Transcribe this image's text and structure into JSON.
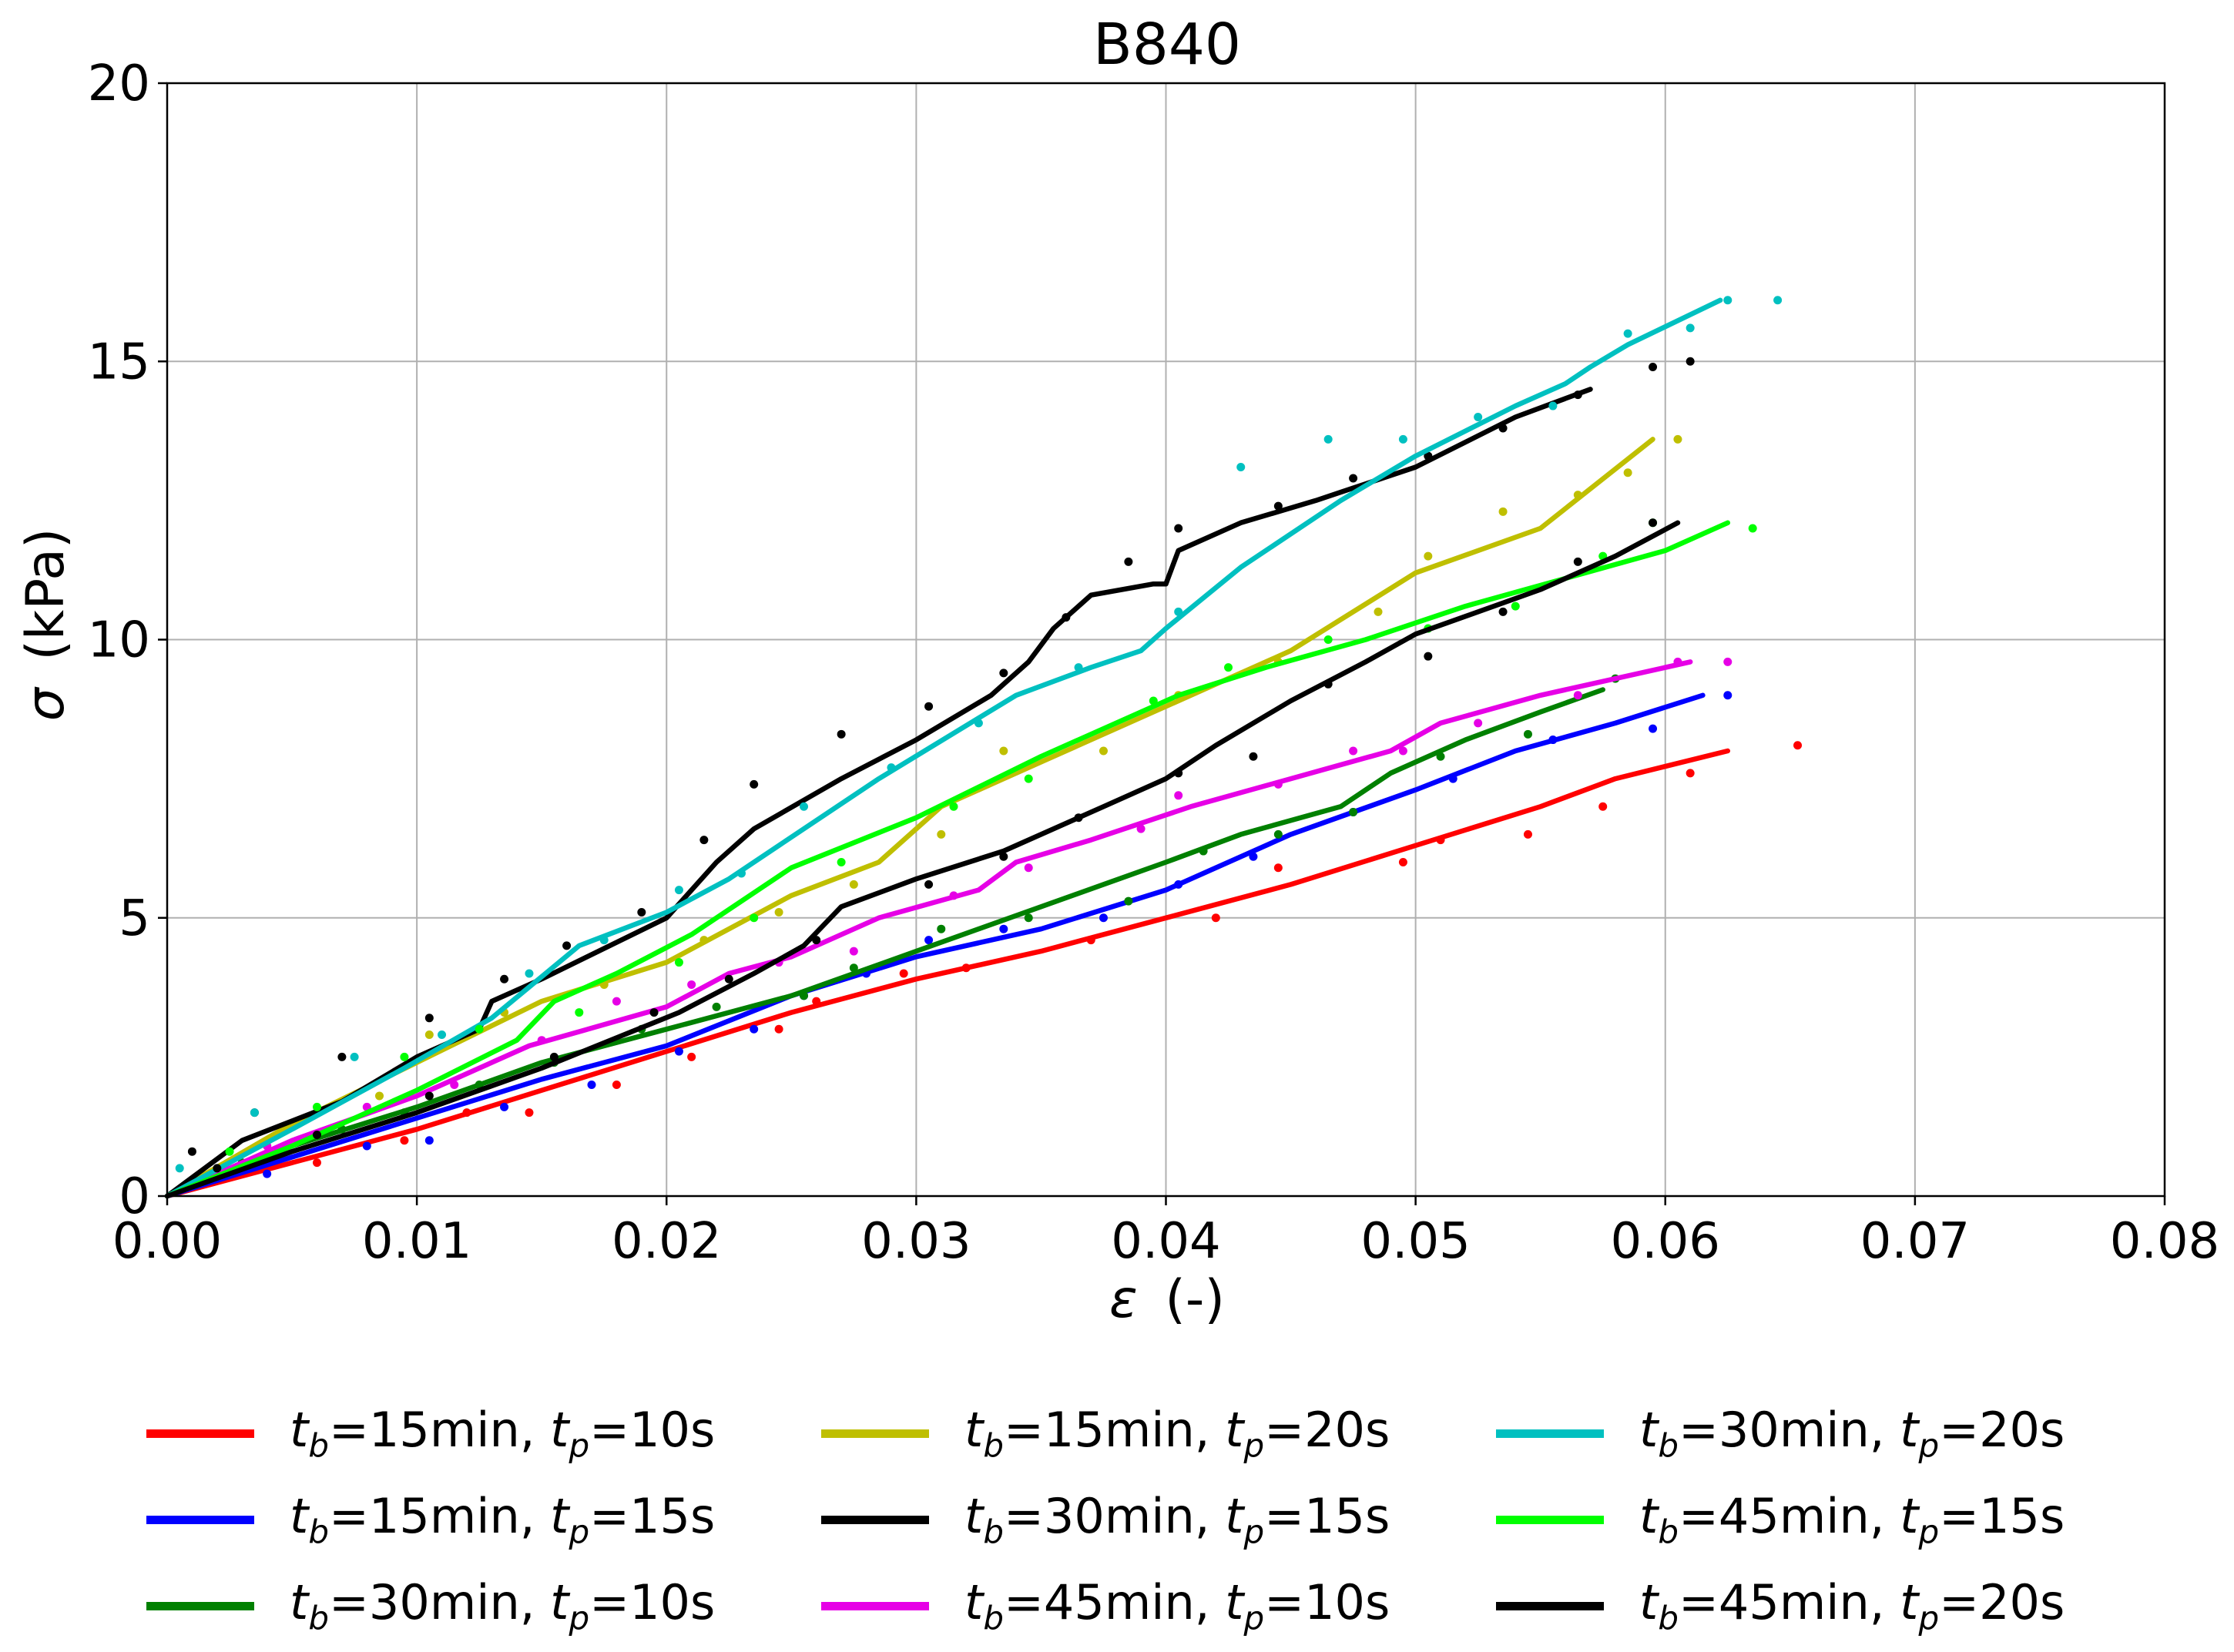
{
  "chart_data": {
    "type": "line",
    "title": "B840",
    "xlabel_symbol": "ε",
    "xlabel_unit": "(-)",
    "ylabel_symbol": "σ",
    "ylabel_unit": "(kPa)",
    "xlim": [
      0,
      0.08
    ],
    "ylim": [
      0,
      20
    ],
    "xticks": [
      0,
      0.01,
      0.02,
      0.03,
      0.04,
      0.05,
      0.06,
      0.07,
      0.08
    ],
    "xtick_labels": [
      "0.00",
      "0.01",
      "0.02",
      "0.03",
      "0.04",
      "0.05",
      "0.06",
      "0.07",
      "0.08"
    ],
    "yticks": [
      0,
      5,
      10,
      15,
      20
    ],
    "ytick_labels": [
      "0",
      "5",
      "10",
      "15",
      "20"
    ],
    "grid": true,
    "legend_position": "below",
    "series": [
      {
        "id": "s1",
        "tb": "15min",
        "tp": "10s",
        "color": "#ff0000",
        "x": [
          0,
          0.005,
          0.01,
          0.015,
          0.02,
          0.025,
          0.03,
          0.035,
          0.04,
          0.045,
          0.05,
          0.055,
          0.058,
          0.0625
        ],
        "y": [
          0,
          0.6,
          1.2,
          1.9,
          2.6,
          3.3,
          3.9,
          4.4,
          5.0,
          5.6,
          6.3,
          7.0,
          7.5,
          8.0
        ],
        "points_x": [
          0.003,
          0.006,
          0.0095,
          0.012,
          0.0145,
          0.018,
          0.021,
          0.0245,
          0.026,
          0.0295,
          0.032,
          0.037,
          0.042,
          0.0445,
          0.0495,
          0.051,
          0.0545,
          0.0575,
          0.061,
          0.0653
        ],
        "points_y": [
          0.4,
          0.6,
          1.0,
          1.5,
          1.5,
          2.0,
          2.5,
          3.0,
          3.5,
          4.0,
          4.1,
          4.6,
          5.0,
          5.9,
          6.0,
          6.4,
          6.5,
          7.0,
          7.6,
          8.1
        ]
      },
      {
        "id": "s2",
        "tb": "15min",
        "tp": "15s",
        "color": "#0000ff",
        "x": [
          0,
          0.005,
          0.01,
          0.015,
          0.02,
          0.025,
          0.03,
          0.035,
          0.04,
          0.045,
          0.05,
          0.054,
          0.058,
          0.0615
        ],
        "y": [
          0,
          0.7,
          1.4,
          2.1,
          2.7,
          3.6,
          4.3,
          4.8,
          5.5,
          6.5,
          7.3,
          8.0,
          8.5,
          9.0
        ],
        "points_x": [
          0.004,
          0.008,
          0.0105,
          0.0135,
          0.017,
          0.0205,
          0.0235,
          0.0255,
          0.028,
          0.0305,
          0.0335,
          0.0375,
          0.0405,
          0.0435,
          0.0475,
          0.0515,
          0.0555,
          0.0595,
          0.0625
        ],
        "points_y": [
          0.4,
          0.9,
          1.0,
          1.6,
          2.0,
          2.6,
          3.0,
          3.6,
          4.0,
          4.6,
          4.8,
          5.0,
          5.6,
          6.1,
          6.9,
          7.5,
          8.2,
          8.4,
          9.0
        ]
      },
      {
        "id": "s3",
        "tb": "30min",
        "tp": "10s",
        "color": "#008000",
        "x": [
          0,
          0.005,
          0.01,
          0.015,
          0.02,
          0.025,
          0.03,
          0.035,
          0.04,
          0.043,
          0.047,
          0.049,
          0.052,
          0.055,
          0.0575
        ],
        "y": [
          0,
          0.9,
          1.6,
          2.4,
          3.0,
          3.6,
          4.4,
          5.2,
          6.0,
          6.5,
          7.0,
          7.6,
          8.2,
          8.7,
          9.1
        ],
        "points_x": [
          0.003,
          0.007,
          0.0095,
          0.0125,
          0.0155,
          0.019,
          0.022,
          0.0255,
          0.0275,
          0.031,
          0.0345,
          0.0385,
          0.0415,
          0.0445,
          0.0475,
          0.051,
          0.0545,
          0.058
        ],
        "points_y": [
          0.6,
          1.2,
          1.5,
          2.0,
          2.4,
          3.0,
          3.4,
          3.6,
          4.1,
          4.8,
          5.0,
          5.3,
          6.2,
          6.5,
          6.9,
          7.9,
          8.3,
          9.3
        ]
      },
      {
        "id": "s4",
        "tb": "15min",
        "tp": "20s",
        "color": "#bfbf00",
        "x": [
          0,
          0.005,
          0.01,
          0.015,
          0.02,
          0.025,
          0.0285,
          0.031,
          0.035,
          0.04,
          0.045,
          0.05,
          0.055,
          0.0595
        ],
        "y": [
          0,
          1.3,
          2.4,
          3.5,
          4.2,
          5.4,
          6.0,
          7.0,
          7.8,
          8.8,
          9.8,
          11.2,
          12.0,
          13.6
        ],
        "points_x": [
          0.004,
          0.0085,
          0.0105,
          0.0135,
          0.0175,
          0.0215,
          0.0245,
          0.0275,
          0.031,
          0.0335,
          0.0375,
          0.0405,
          0.0445,
          0.0485,
          0.0505,
          0.0535,
          0.0565,
          0.0585,
          0.0605
        ],
        "points_y": [
          0.9,
          1.8,
          2.9,
          3.3,
          3.8,
          4.6,
          5.1,
          5.6,
          6.5,
          8.0,
          8.0,
          9.0,
          9.6,
          10.5,
          11.5,
          12.3,
          12.6,
          13.0,
          13.6
        ]
      },
      {
        "id": "s5",
        "tb": "30min",
        "tp": "15s",
        "color": "#000000",
        "x": [
          0,
          0.003,
          0.007,
          0.01,
          0.0125,
          0.013,
          0.015,
          0.02,
          0.022,
          0.0235,
          0.027,
          0.03,
          0.033,
          0.0345,
          0.0355,
          0.037,
          0.0395,
          0.04,
          0.0405,
          0.043,
          0.046,
          0.05,
          0.054,
          0.057
        ],
        "y": [
          0,
          1.0,
          1.7,
          2.5,
          3.0,
          3.5,
          3.9,
          5.0,
          6.0,
          6.6,
          7.5,
          8.2,
          9.0,
          9.6,
          10.2,
          10.8,
          11.0,
          11.0,
          11.6,
          12.1,
          12.5,
          13.1,
          14.0,
          14.5
        ],
        "points_x": [
          0.001,
          0.0035,
          0.007,
          0.0105,
          0.0135,
          0.016,
          0.019,
          0.0215,
          0.0235,
          0.027,
          0.0305,
          0.0335,
          0.036,
          0.0385,
          0.0405,
          0.0445,
          0.0475,
          0.0505,
          0.0535,
          0.0565,
          0.0595,
          0.061
        ],
        "points_y": [
          0.8,
          1.5,
          2.5,
          3.2,
          3.9,
          4.5,
          5.1,
          6.4,
          7.4,
          8.3,
          8.8,
          9.4,
          10.4,
          11.4,
          12.0,
          12.4,
          12.9,
          13.3,
          13.8,
          14.4,
          14.9,
          15.0
        ]
      },
      {
        "id": "s6",
        "tb": "45min",
        "tp": "10s",
        "color": "#e600e6",
        "x": [
          0,
          0.005,
          0.01,
          0.0145,
          0.02,
          0.0225,
          0.025,
          0.0285,
          0.0325,
          0.034,
          0.037,
          0.041,
          0.045,
          0.049,
          0.051,
          0.055,
          0.061
        ],
        "y": [
          0,
          1.0,
          1.8,
          2.7,
          3.4,
          4.0,
          4.3,
          5.0,
          5.5,
          6.0,
          6.4,
          7.0,
          7.5,
          8.0,
          8.5,
          9.0,
          9.6
        ],
        "points_x": [
          0.004,
          0.008,
          0.0115,
          0.015,
          0.018,
          0.021,
          0.0245,
          0.0275,
          0.0315,
          0.0345,
          0.039,
          0.0405,
          0.0445,
          0.0475,
          0.0495,
          0.0525,
          0.0565,
          0.0605,
          0.0625
        ],
        "points_y": [
          0.9,
          1.6,
          2.0,
          2.8,
          3.5,
          3.8,
          4.2,
          4.4,
          5.4,
          5.9,
          6.6,
          7.2,
          7.4,
          8.0,
          8.0,
          8.5,
          9.0,
          9.6,
          9.6
        ]
      },
      {
        "id": "s7",
        "tb": "30min",
        "tp": "20s",
        "color": "#00c0c0",
        "x": [
          0,
          0.005,
          0.0095,
          0.013,
          0.0165,
          0.02,
          0.0225,
          0.0245,
          0.0285,
          0.034,
          0.037,
          0.039,
          0.04,
          0.043,
          0.047,
          0.05,
          0.054,
          0.056,
          0.057,
          0.0585,
          0.0622
        ],
        "y": [
          0,
          1.2,
          2.3,
          3.2,
          4.5,
          5.1,
          5.7,
          6.3,
          7.5,
          9.0,
          9.5,
          9.8,
          10.2,
          11.3,
          12.5,
          13.3,
          14.2,
          14.6,
          14.9,
          15.3,
          16.1
        ],
        "points_x": [
          0.0005,
          0.0035,
          0.0075,
          0.011,
          0.0145,
          0.0175,
          0.0205,
          0.023,
          0.0255,
          0.029,
          0.0325,
          0.0365,
          0.0405,
          0.043,
          0.0465,
          0.0495,
          0.0525,
          0.0555,
          0.0585,
          0.061,
          0.0625,
          0.0645
        ],
        "points_y": [
          0.5,
          1.5,
          2.5,
          2.9,
          4.0,
          4.6,
          5.5,
          5.8,
          7.0,
          7.7,
          8.5,
          9.5,
          10.5,
          13.1,
          13.6,
          13.6,
          14.0,
          14.2,
          15.5,
          15.6,
          16.1,
          16.1
        ]
      },
      {
        "id": "s8",
        "tb": "45min",
        "tp": "15s",
        "color": "#00ff00",
        "x": [
          0,
          0.005,
          0.01,
          0.014,
          0.0155,
          0.018,
          0.021,
          0.025,
          0.03,
          0.035,
          0.0405,
          0.044,
          0.048,
          0.052,
          0.056,
          0.06,
          0.0625
        ],
        "y": [
          0,
          0.9,
          1.9,
          2.8,
          3.5,
          4.0,
          4.7,
          5.9,
          6.8,
          7.9,
          9.0,
          9.5,
          10.0,
          10.6,
          11.1,
          11.6,
          12.1
        ],
        "points_x": [
          0.0025,
          0.006,
          0.0095,
          0.0125,
          0.0165,
          0.0205,
          0.0235,
          0.027,
          0.0315,
          0.0345,
          0.0395,
          0.0425,
          0.0465,
          0.0505,
          0.054,
          0.0575,
          0.0595,
          0.0635
        ],
        "points_y": [
          0.8,
          1.6,
          2.5,
          3.0,
          3.3,
          4.2,
          5.0,
          6.0,
          7.0,
          7.5,
          8.9,
          9.5,
          10.0,
          10.2,
          10.6,
          11.5,
          12.1,
          12.0
        ]
      },
      {
        "id": "s9",
        "tb": "45min",
        "tp": "20s",
        "color": "#000000",
        "x": [
          0,
          0.005,
          0.01,
          0.015,
          0.0205,
          0.0235,
          0.0255,
          0.027,
          0.03,
          0.0335,
          0.0375,
          0.04,
          0.042,
          0.045,
          0.048,
          0.05,
          0.055,
          0.058,
          0.0605
        ],
        "y": [
          0,
          0.8,
          1.5,
          2.3,
          3.3,
          4.0,
          4.5,
          5.2,
          5.7,
          6.2,
          7.0,
          7.5,
          8.1,
          8.9,
          9.6,
          10.1,
          10.9,
          11.5,
          12.1
        ],
        "points_x": [
          0.002,
          0.006,
          0.0105,
          0.0155,
          0.0195,
          0.0225,
          0.026,
          0.0305,
          0.0335,
          0.0365,
          0.0405,
          0.0435,
          0.0465,
          0.0505,
          0.0535,
          0.0565,
          0.0595
        ],
        "points_y": [
          0.5,
          1.1,
          1.8,
          2.5,
          3.3,
          3.9,
          4.6,
          5.6,
          6.1,
          6.8,
          7.6,
          7.9,
          9.2,
          9.7,
          10.5,
          11.4,
          12.1
        ]
      }
    ]
  },
  "legend": {
    "columns": [
      [
        "s1",
        "s2",
        "s3"
      ],
      [
        "s4",
        "s5",
        "s6"
      ],
      [
        "s7",
        "s8",
        "s9"
      ]
    ]
  }
}
